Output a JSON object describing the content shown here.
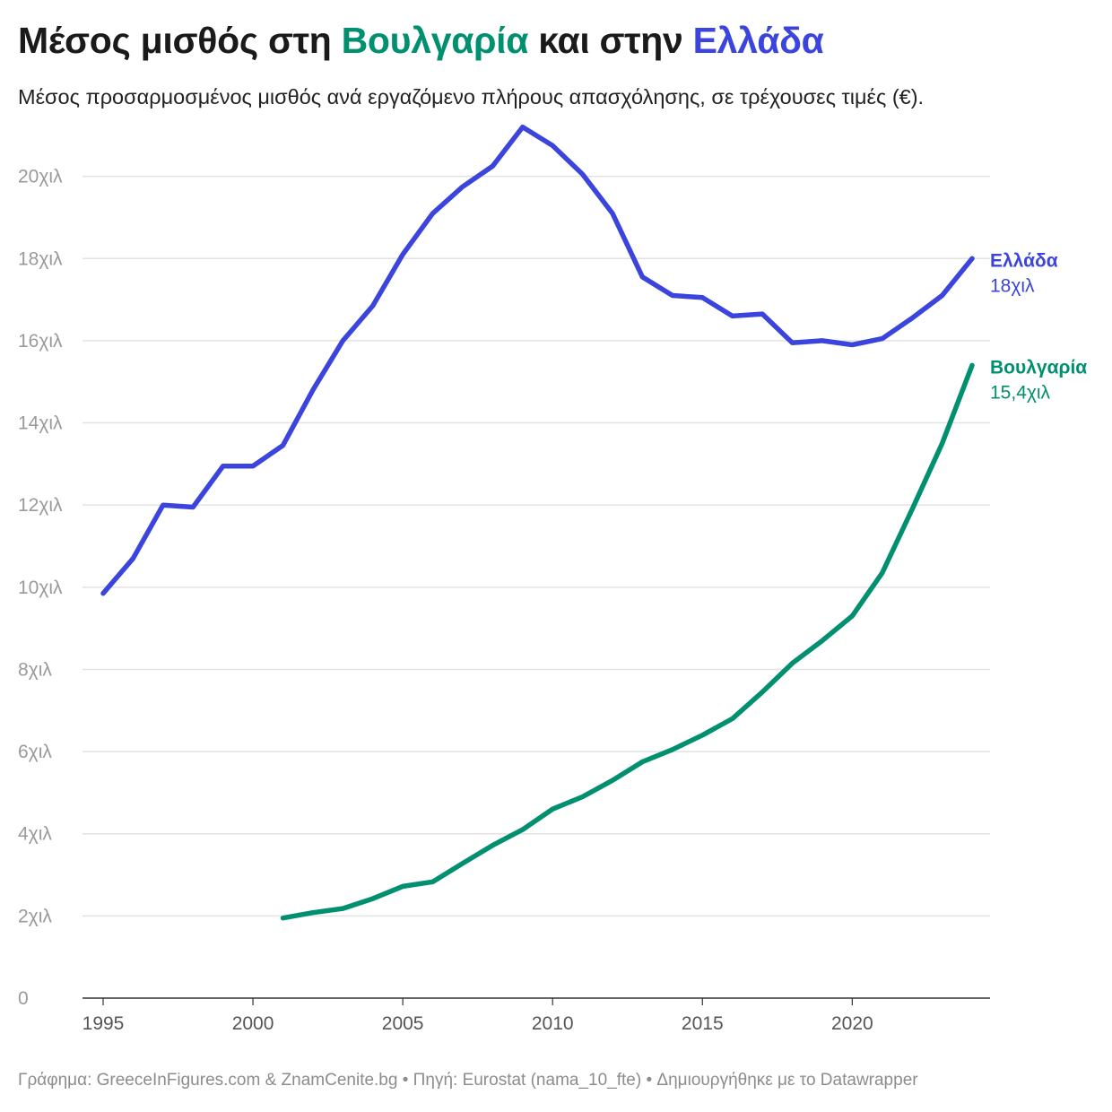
{
  "title": {
    "prefix": "Μέσος μισθός στη ",
    "bulgaria": "Βουλγαρία",
    "middle": " και στην ",
    "greece": "Ελλάδα"
  },
  "subtitle": "Μέσος προσαρμοσμένος μισθός ανά εργαζόμενο πλήρους απασχόλησης, σε τρέχουσες τιμές (€).",
  "footer": "Γράφημα: GreeceInFigures.com & ZnamCenite.bg • Πηγή: Eurostat (nama_10_fte) • Δημιουργήθηκε με το Datawrapper",
  "colors": {
    "greece": "#3b44dc",
    "bulgaria": "#009070",
    "grid": "#e2e2e2",
    "axis": "#333333"
  },
  "chart_data": {
    "type": "line",
    "title": "Μέσος μισθός στη Βουλγαρία και στην Ελλάδα",
    "xlabel": "",
    "ylabel": "",
    "xlim": [
      1995,
      2024
    ],
    "ylim": [
      0,
      22000
    ],
    "x_ticks": [
      1995,
      2000,
      2005,
      2010,
      2015,
      2020
    ],
    "x_tick_labels": [
      "1995",
      "2000",
      "2005",
      "2010",
      "2015",
      "2020"
    ],
    "y_ticks": [
      0,
      2000,
      4000,
      6000,
      8000,
      10000,
      12000,
      14000,
      16000,
      18000,
      20000
    ],
    "y_tick_labels": [
      "0",
      "2χιλ",
      "4χιλ",
      "6χιλ",
      "8χιλ",
      "10χιλ",
      "12χιλ",
      "14χιλ",
      "16χιλ",
      "18χιλ",
      "20χιλ"
    ],
    "grid": true,
    "series": [
      {
        "name": "Ελλάδα",
        "end_label": "18χιλ",
        "color": "#3b44dc",
        "x": [
          1995,
          1996,
          1997,
          1998,
          1999,
          2000,
          2001,
          2002,
          2003,
          2004,
          2005,
          2006,
          2007,
          2008,
          2009,
          2010,
          2011,
          2012,
          2013,
          2014,
          2015,
          2016,
          2017,
          2018,
          2019,
          2020,
          2021,
          2022,
          2023,
          2024
        ],
        "y": [
          9850,
          10700,
          12000,
          11950,
          12950,
          12950,
          13450,
          14800,
          16000,
          16850,
          18100,
          19100,
          19750,
          20250,
          21200,
          20750,
          20050,
          19100,
          17550,
          17100,
          17050,
          16600,
          16650,
          15950,
          16000,
          15900,
          16050,
          16550,
          17100,
          18000
        ]
      },
      {
        "name": "Βουλγαρία",
        "end_label": "15,4χιλ",
        "color": "#009070",
        "x": [
          2001,
          2002,
          2003,
          2004,
          2005,
          2006,
          2007,
          2008,
          2009,
          2010,
          2011,
          2012,
          2013,
          2014,
          2015,
          2016,
          2017,
          2018,
          2019,
          2020,
          2021,
          2022,
          2023,
          2024
        ],
        "y": [
          1950,
          2080,
          2180,
          2420,
          2720,
          2830,
          3280,
          3720,
          4100,
          4600,
          4900,
          5300,
          5750,
          6050,
          6400,
          6800,
          7450,
          8150,
          8700,
          9300,
          10350,
          11900,
          13500,
          15400
        ]
      }
    ]
  }
}
